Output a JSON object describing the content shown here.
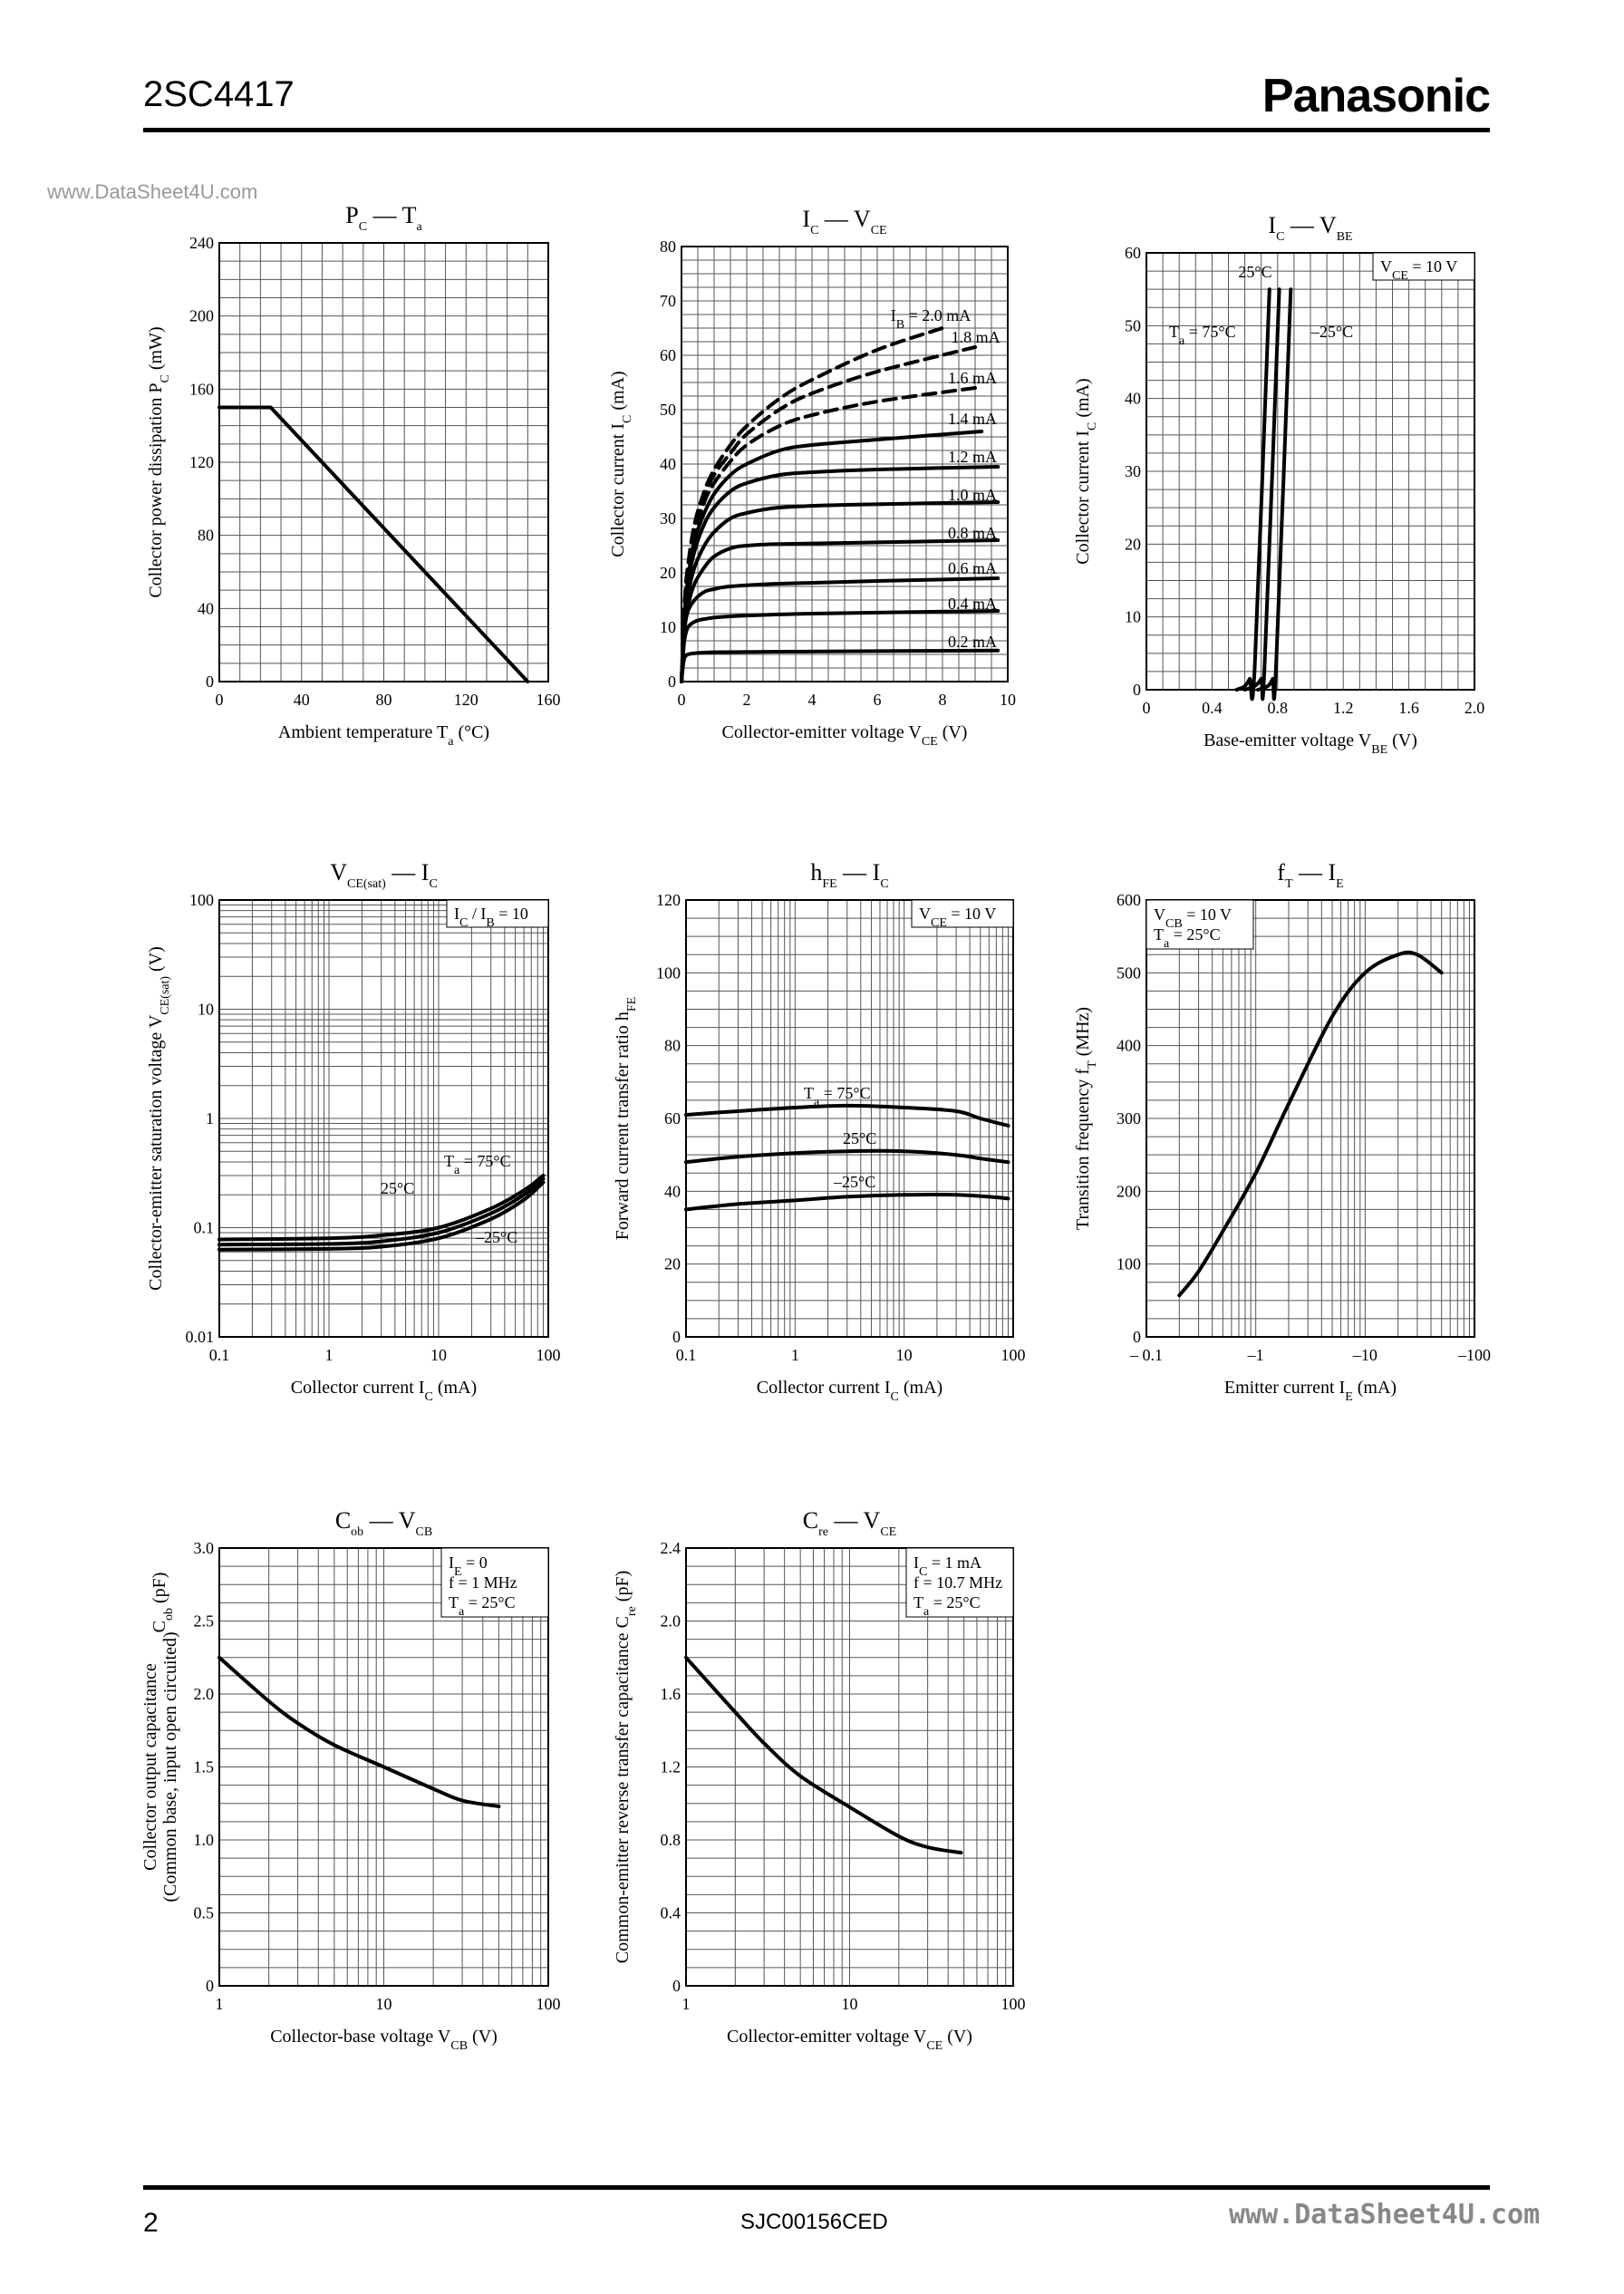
{
  "header": {
    "part_number": "2SC4417",
    "brand": "Panasonic"
  },
  "watermark_top": "www.DataSheet4U.com",
  "footer": {
    "page": "2",
    "doc_code": "SJC00156CED",
    "watermark": "www.DataSheet4U.com"
  },
  "chart_data": [
    {
      "id": "pc_ta",
      "type": "line",
      "title": "P",
      "title_sub": "C",
      "title_rest": " — T",
      "title_sub2": "a",
      "xlabel": "Ambient temperature  T",
      "xlabel_sub": "a",
      "xlabel_unit": " (°C)",
      "ylabel": "Collector power dissipation  P",
      "ylabel_sub": "C",
      "ylabel_unit": "  (mW)",
      "xscale": "linear",
      "yscale": "linear",
      "xlim": [
        0,
        160
      ],
      "ylim": [
        0,
        240
      ],
      "xticks": [
        0,
        40,
        80,
        120,
        160
      ],
      "xtick_labels": [
        "0",
        "40",
        "80",
        "120",
        "160"
      ],
      "yticks": [
        0,
        40,
        80,
        120,
        160,
        200,
        240
      ],
      "ytick_labels": [
        "0",
        "40",
        "80",
        "120",
        "160",
        "200",
        "240"
      ],
      "grid": true,
      "series": [
        {
          "x": [
            0,
            25,
            150
          ],
          "y": [
            150,
            150,
            0
          ]
        }
      ]
    },
    {
      "id": "ic_vce",
      "type": "line",
      "title": "I",
      "title_sub": "C",
      "title_rest": " — V",
      "title_sub2": "CE",
      "xlabel": "Collector-emitter voltage  V",
      "xlabel_sub": "CE",
      "xlabel_unit": "  (V)",
      "ylabel": "Collector current  I",
      "ylabel_sub": "C",
      "ylabel_unit": "  (mA)",
      "xscale": "linear",
      "yscale": "linear",
      "xlim": [
        0,
        10
      ],
      "ylim": [
        0,
        80
      ],
      "xticks": [
        0,
        2,
        4,
        6,
        8,
        10
      ],
      "xtick_labels": [
        "0",
        "2",
        "4",
        "6",
        "8",
        "10"
      ],
      "yticks": [
        0,
        10,
        20,
        30,
        40,
        50,
        60,
        70,
        80
      ],
      "ytick_labels": [
        "0",
        "10",
        "20",
        "30",
        "40",
        "50",
        "60",
        "70",
        "80"
      ],
      "grid": true,
      "series": [
        {
          "name": "0.2 mA",
          "label_pos": [
            8,
            7
          ],
          "x": [
            0,
            0.05,
            0.1,
            0.2,
            0.4,
            1,
            3,
            6,
            9.7
          ],
          "y": [
            0,
            3,
            4.5,
            5,
            5.2,
            5.4,
            5.5,
            5.6,
            5.7
          ]
        },
        {
          "name": "0.4 mA",
          "label_pos": [
            8,
            14
          ],
          "x": [
            0,
            0.05,
            0.1,
            0.2,
            0.4,
            0.7,
            1.5,
            4,
            9.7
          ],
          "y": [
            0,
            5,
            8,
            10,
            11,
            11.5,
            12,
            12.5,
            13
          ]
        },
        {
          "name": "0.6 mA",
          "label_pos": [
            8,
            20.5
          ],
          "x": [
            0,
            0.05,
            0.1,
            0.2,
            0.4,
            0.7,
            1,
            1.5,
            3,
            6,
            9.7
          ],
          "y": [
            0,
            6,
            10,
            13,
            15,
            16.5,
            17,
            17.5,
            18,
            18.5,
            19
          ]
        },
        {
          "name": "0.8 mA",
          "label_pos": [
            8,
            27
          ],
          "x": [
            0,
            0.1,
            0.2,
            0.4,
            0.7,
            1,
            1.5,
            2,
            3,
            6,
            9.7
          ],
          "y": [
            0,
            10,
            14,
            18,
            21,
            23,
            24.5,
            25,
            25.3,
            25.6,
            26
          ]
        },
        {
          "name": "1.0 mA",
          "label_pos": [
            8,
            34
          ],
          "x": [
            0,
            0.1,
            0.2,
            0.4,
            0.7,
            1,
            1.5,
            2,
            3,
            5,
            9.7
          ],
          "y": [
            0,
            11,
            16,
            21,
            25,
            27.5,
            30,
            31,
            32,
            32.5,
            33
          ]
        },
        {
          "name": "1.2 mA",
          "label_pos": [
            8,
            41
          ],
          "x": [
            0,
            0.1,
            0.2,
            0.4,
            0.7,
            1,
            1.5,
            2,
            3,
            4,
            6,
            9.7
          ],
          "y": [
            0,
            12,
            18,
            24,
            29,
            32,
            35,
            36.5,
            38,
            38.5,
            39,
            39.5
          ]
        },
        {
          "name": "1.4 mA",
          "label_pos": [
            8,
            48
          ],
          "x": [
            0,
            0.1,
            0.2,
            0.4,
            0.7,
            1,
            1.5,
            2,
            3,
            4,
            6,
            9.2
          ],
          "y": [
            0,
            13,
            19,
            26,
            31,
            34.5,
            38,
            40,
            42.5,
            43.5,
            44.5,
            46
          ]
        },
        {
          "name": "1.6 mA",
          "label_pos": [
            8,
            55.5
          ],
          "x": [
            0,
            0.1,
            0.2,
            0.4,
            0.7,
            1,
            1.5,
            2,
            3,
            4,
            6,
            9
          ],
          "y": [
            0,
            14,
            20,
            27,
            33,
            36.5,
            40.5,
            43.5,
            47,
            49,
            51.5,
            54
          ]
        },
        {
          "name": "1.8 mA",
          "label_pos": [
            8.1,
            63
          ],
          "x": [
            0,
            0.1,
            0.2,
            0.4,
            0.7,
            1,
            1.5,
            2,
            3,
            4,
            6,
            9
          ],
          "y": [
            0,
            14.5,
            21,
            28,
            34,
            38,
            42,
            45.5,
            50,
            53,
            57,
            61.5
          ]
        },
        {
          "name": "2.0 mA",
          "label_pos": [
            6.8,
            67
          ],
          "x": [
            0,
            0.1,
            0.2,
            0.4,
            0.7,
            1,
            1.5,
            2,
            3,
            4,
            6,
            8
          ],
          "y": [
            0,
            15,
            21.5,
            29,
            35,
            39,
            43.5,
            47,
            52,
            55.5,
            61,
            65
          ]
        }
      ],
      "legend_prefix": "I",
      "legend_prefix_sub": "B",
      "legend_prefix_eq": " = "
    },
    {
      "id": "ic_vbe",
      "type": "line",
      "title": "I",
      "title_sub": "C",
      "title_rest": " — V",
      "title_sub2": "BE",
      "xlabel": "Base-emitter voltage  V",
      "xlabel_sub": "BE",
      "xlabel_unit": "  (V)",
      "ylabel": "Collector current  I",
      "ylabel_sub": "C",
      "ylabel_unit": "  (mA)",
      "xscale": "linear",
      "yscale": "linear",
      "xlim": [
        0,
        2.0
      ],
      "ylim": [
        0,
        60
      ],
      "xticks": [
        0,
        0.4,
        0.8,
        1.2,
        1.6,
        2.0
      ],
      "xtick_labels": [
        "0",
        "0.4",
        "0.8",
        "1.2",
        "1.6",
        "2.0"
      ],
      "yticks": [
        0,
        10,
        20,
        30,
        40,
        50,
        60
      ],
      "ytick_labels": [
        "0",
        "10",
        "20",
        "30",
        "40",
        "50",
        "60"
      ],
      "grid": true,
      "condition": "V",
      "condition_sub": "CE",
      "condition_rest": " = 10 V",
      "series": [
        {
          "name": "T",
          "name_sub": "a",
          "name_rest": " = 75°C",
          "x": [
            0.55,
            0.6,
            0.63,
            0.66,
            0.75
          ],
          "y": [
            0,
            0.5,
            1.5,
            3,
            55
          ]
        },
        {
          "name": "25°C",
          "x": [
            0.6,
            0.66,
            0.7,
            0.72,
            0.81
          ],
          "y": [
            0,
            0.5,
            1.5,
            3,
            55
          ]
        },
        {
          "name": "–25°C",
          "x": [
            0.68,
            0.74,
            0.77,
            0.79,
            0.88
          ],
          "y": [
            0,
            0.5,
            1.5,
            3,
            55
          ]
        }
      ]
    },
    {
      "id": "vce_sat_ic",
      "type": "line",
      "title": "V",
      "title_sub": "CE(sat)",
      "title_rest": " — I",
      "title_sub2": "C",
      "xlabel": "Collector current  I",
      "xlabel_sub": "C",
      "xlabel_unit": "  (mA)",
      "ylabel": "Collector-emitter saturation voltage  V",
      "ylabel_sub": "CE(sat)",
      "ylabel_unit": "  (V)",
      "xscale": "log",
      "yscale": "log",
      "xlim": [
        0.1,
        100
      ],
      "ylim": [
        0.01,
        100
      ],
      "xticks": [
        0.1,
        1,
        10,
        100
      ],
      "xtick_labels": [
        "0.1",
        "1",
        "10",
        "100"
      ],
      "yticks": [
        0.01,
        0.1,
        1,
        10,
        100
      ],
      "ytick_labels": [
        "0.01",
        "0.1",
        "1",
        "10",
        "100"
      ],
      "grid": true,
      "condition": "I",
      "condition_sub": "C",
      "condition_rest": " / I",
      "condition_sub2": "B",
      "condition_rest2": " = 10",
      "series": [
        {
          "name": "T",
          "name_sub": "a",
          "name_rest": " = 75°C",
          "x": [
            0.1,
            1,
            3,
            10,
            30,
            60,
            90
          ],
          "y": [
            0.078,
            0.08,
            0.085,
            0.1,
            0.15,
            0.22,
            0.3
          ]
        },
        {
          "name": "25°C",
          "x": [
            0.1,
            1,
            3,
            10,
            30,
            60,
            90
          ],
          "y": [
            0.07,
            0.071,
            0.075,
            0.09,
            0.135,
            0.2,
            0.28
          ]
        },
        {
          "name": "–25°C",
          "x": [
            0.1,
            1,
            3,
            10,
            30,
            60,
            90
          ],
          "y": [
            0.063,
            0.064,
            0.067,
            0.08,
            0.12,
            0.18,
            0.26
          ]
        }
      ]
    },
    {
      "id": "hfe_ic",
      "type": "line",
      "title": "h",
      "title_sub": "FE",
      "title_rest": " — I",
      "title_sub2": "C",
      "xlabel": "Collector current  I",
      "xlabel_sub": "C",
      "xlabel_unit": "  (mA)",
      "ylabel": "Forward current transfer ratio  h",
      "ylabel_sub": "FE",
      "ylabel_unit": "",
      "xscale": "log",
      "yscale": "linear",
      "xlim": [
        0.1,
        100
      ],
      "ylim": [
        0,
        120
      ],
      "xticks": [
        0.1,
        1,
        10,
        100
      ],
      "xtick_labels": [
        "0.1",
        "1",
        "10",
        "100"
      ],
      "yticks": [
        0,
        20,
        40,
        60,
        80,
        100,
        120
      ],
      "ytick_labels": [
        "0",
        "20",
        "40",
        "60",
        "80",
        "100",
        "120"
      ],
      "grid": true,
      "condition": "V",
      "condition_sub": "CE",
      "condition_rest": " = 10 V",
      "series": [
        {
          "name": "T",
          "name_sub": "a",
          "name_rest": " = 75°C",
          "x": [
            0.1,
            0.3,
            1,
            3,
            10,
            30,
            50,
            90
          ],
          "y": [
            61,
            62,
            63,
            63.5,
            63,
            62,
            60,
            58
          ]
        },
        {
          "name": "25°C",
          "x": [
            0.1,
            0.3,
            1,
            3,
            10,
            30,
            50,
            90
          ],
          "y": [
            48,
            49.5,
            50.5,
            51,
            51,
            50,
            49,
            48
          ]
        },
        {
          "name": "–25°C",
          "x": [
            0.1,
            0.3,
            1,
            3,
            10,
            30,
            60,
            90
          ],
          "y": [
            35,
            36.5,
            37.5,
            38.5,
            39,
            39,
            38.5,
            38
          ]
        }
      ]
    },
    {
      "id": "ft_ie",
      "type": "line",
      "title": "f",
      "title_sub": "T",
      "title_rest": " — I",
      "title_sub2": "E",
      "xlabel": "Emitter current  I",
      "xlabel_sub": "E",
      "xlabel_unit": "  (mA)",
      "ylabel": "Transition frequency  f",
      "ylabel_sub": "T",
      "ylabel_unit": "  (MHz)",
      "xscale": "log",
      "yscale": "linear",
      "xlim": [
        -0.1,
        -100
      ],
      "ylim": [
        0,
        600
      ],
      "xticks": [
        -0.1,
        -1,
        -10,
        -100
      ],
      "xtick_labels": [
        "– 0.1",
        "–1",
        "–10",
        "–100"
      ],
      "yticks": [
        0,
        100,
        200,
        300,
        400,
        500,
        600
      ],
      "ytick_labels": [
        "0",
        "100",
        "200",
        "300",
        "400",
        "500",
        "600"
      ],
      "grid": true,
      "conditions": [
        {
          "text": "V",
          "sub": "CB",
          "rest": " = 10 V"
        },
        {
          "text": "T",
          "sub": "a",
          "rest": " = 25°C"
        }
      ],
      "series": [
        {
          "x": [
            -0.2,
            -0.3,
            -0.5,
            -1,
            -2,
            -5,
            -10,
            -20,
            -30,
            -50
          ],
          "y": [
            57,
            90,
            145,
            225,
            320,
            440,
            500,
            525,
            525,
            500
          ]
        }
      ]
    },
    {
      "id": "cob_vcb",
      "type": "line",
      "title": "C",
      "title_sub": "ob",
      "title_rest": " — V",
      "title_sub2": "CB",
      "xlabel": "Collector-base voltage  V",
      "xlabel_sub": "CB",
      "xlabel_unit": "  (V)",
      "ylabel": "Collector output capacitance",
      "ylabel2": "(Common base, input open circuited)",
      "ylabel3": "C",
      "ylabel3_sub": "ob",
      "ylabel_unit": "  (pF)",
      "xscale": "log",
      "yscale": "linear",
      "xlim": [
        1,
        100
      ],
      "ylim": [
        0,
        3.0
      ],
      "xticks": [
        1,
        10,
        100
      ],
      "xtick_labels": [
        "1",
        "10",
        "100"
      ],
      "yticks": [
        0,
        0.5,
        1.0,
        1.5,
        2.0,
        2.5,
        3.0
      ],
      "ytick_labels": [
        "0",
        "0.5",
        "1.0",
        "1.5",
        "2.0",
        "2.5",
        "3.0"
      ],
      "grid": true,
      "conditions": [
        {
          "text": "I",
          "sub": "E",
          "rest": " = 0"
        },
        {
          "text": "f = 1 MHz",
          "sub": "",
          "rest": ""
        },
        {
          "text": "T",
          "sub": "a",
          "rest": " = 25°C"
        }
      ],
      "series": [
        {
          "x": [
            1,
            2,
            3,
            5,
            10,
            20,
            30,
            50
          ],
          "y": [
            2.25,
            1.95,
            1.8,
            1.65,
            1.5,
            1.35,
            1.27,
            1.23
          ]
        }
      ]
    },
    {
      "id": "cre_vce",
      "type": "line",
      "title": "C",
      "title_sub": "re",
      "title_rest": " — V",
      "title_sub2": "CE",
      "xlabel": "Collector-emitter voltage  V",
      "xlabel_sub": "CE",
      "xlabel_unit": "  (V)",
      "ylabel": "Common-emitter reverse transfer capacitance  C",
      "ylabel_sub": "re",
      "ylabel_unit": "  (pF)",
      "xscale": "log",
      "yscale": "linear",
      "xlim": [
        1,
        100
      ],
      "ylim": [
        0,
        2.4
      ],
      "xticks": [
        1,
        10,
        100
      ],
      "xtick_labels": [
        "1",
        "10",
        "100"
      ],
      "yticks": [
        0,
        0.4,
        0.8,
        1.2,
        1.6,
        2.0,
        2.4
      ],
      "ytick_labels": [
        "0",
        "0.4",
        "0.8",
        "1.2",
        "1.6",
        "2.0",
        "2.4"
      ],
      "grid": true,
      "conditions": [
        {
          "text": "I",
          "sub": "C",
          "rest": " = 1 mA"
        },
        {
          "text": "f = 10.7 MHz",
          "sub": "",
          "rest": ""
        },
        {
          "text": "T",
          "sub": "a",
          "rest": " = 25°C"
        }
      ],
      "series": [
        {
          "x": [
            1,
            2,
            3,
            5,
            10,
            20,
            30,
            48
          ],
          "y": [
            1.8,
            1.5,
            1.33,
            1.15,
            0.98,
            0.82,
            0.76,
            0.73
          ]
        }
      ]
    }
  ]
}
